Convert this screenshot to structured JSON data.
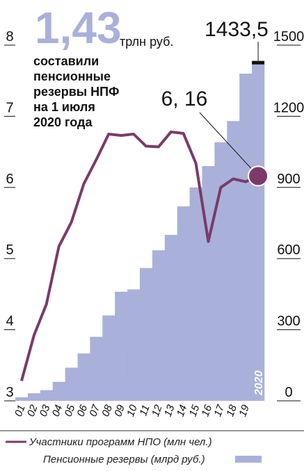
{
  "chart_data": {
    "type": "bar_line",
    "headline_value": "1,43",
    "headline_unit": "трлн руб.",
    "subtitle_lines": [
      "составили",
      "пенсионные",
      "резервы НПФ",
      "на 1 июля",
      "2020 года"
    ],
    "categories": [
      "01",
      "02",
      "03",
      "04",
      "05",
      "06",
      "07",
      "08",
      "09",
      "10",
      "11",
      "12",
      "13",
      "14",
      "15",
      "16",
      "17",
      "18",
      "19",
      "2020"
    ],
    "series": [
      {
        "name": "Пенсионные резервы (млрд руб.)",
        "type": "bar",
        "axis": "y2",
        "color": "#a9b1da",
        "values": [
          15,
          32,
          45,
          80,
          140,
          200,
          270,
          360,
          460,
          470,
          560,
          635,
          700,
          820,
          900,
          990,
          1090,
          1180,
          1380,
          1433.5
        ]
      },
      {
        "name": "Участники программ НПО (млн чел.)",
        "type": "line",
        "axis": "y",
        "color": "#7b3a6a",
        "values": [
          3.28,
          3.92,
          4.36,
          5.17,
          5.51,
          6.05,
          6.39,
          6.75,
          6.73,
          6.75,
          6.58,
          6.57,
          6.78,
          6.76,
          6.34,
          5.24,
          6.0,
          6.12,
          6.08,
          6.16
        ]
      }
    ],
    "annotations": [
      {
        "text": "1433,5",
        "series": 0,
        "index": 19
      },
      {
        "text": "6, 16",
        "series": 1,
        "index": 19
      }
    ],
    "ylim": [
      3,
      8
    ],
    "yticks": [
      3,
      4,
      5,
      6,
      7,
      8
    ],
    "y2lim": [
      0,
      1500
    ],
    "y2ticks": [
      0,
      300,
      600,
      900,
      1200,
      1500
    ]
  }
}
